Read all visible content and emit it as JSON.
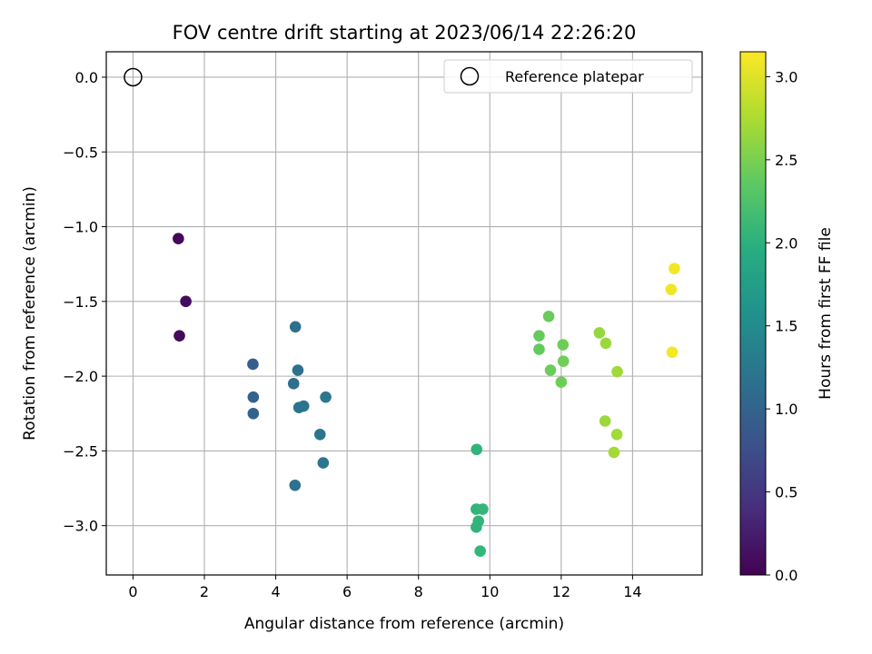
{
  "chart_data": {
    "type": "scatter",
    "title": "FOV centre drift starting at 2023/06/14 22:26:20",
    "xlabel": "Angular distance from reference (arcmin)",
    "ylabel": "Rotation from reference (arcmin)",
    "xlim": [
      -0.75,
      15.95
    ],
    "ylim": [
      -3.33,
      0.17
    ],
    "xticks": [
      0,
      2,
      4,
      6,
      8,
      10,
      12,
      14
    ],
    "yticks": [
      0.0,
      -0.5,
      -1.0,
      -1.5,
      -2.0,
      -2.5,
      -3.0
    ],
    "xtick_labels": [
      "0",
      "2",
      "4",
      "6",
      "8",
      "10",
      "12",
      "14"
    ],
    "ytick_labels": [
      "0.0",
      "−0.5",
      "−1.0",
      "−1.5",
      "−2.0",
      "−2.5",
      "−3.0"
    ],
    "grid": true,
    "legend": {
      "placement": "top-right",
      "label": "Reference platepar"
    },
    "reference_point": {
      "x": 0,
      "y": 0
    },
    "colorbar": {
      "label": "Hours from first FF file",
      "range": [
        0.0,
        3.15
      ],
      "ticks": [
        0.0,
        0.5,
        1.0,
        1.5,
        2.0,
        2.5,
        3.0
      ],
      "tick_labels": [
        "0.0",
        "0.5",
        "1.0",
        "1.5",
        "2.0",
        "2.5",
        "3.0"
      ],
      "colormap": "viridis"
    },
    "points": [
      {
        "x": 1.27,
        "y": -1.08,
        "c": 0.05
      },
      {
        "x": 1.48,
        "y": -1.5,
        "c": 0.1
      },
      {
        "x": 1.3,
        "y": -1.73,
        "c": 0.07
      },
      {
        "x": 3.36,
        "y": -1.92,
        "c": 0.95
      },
      {
        "x": 3.37,
        "y": -2.14,
        "c": 0.97
      },
      {
        "x": 3.37,
        "y": -2.25,
        "c": 0.99
      },
      {
        "x": 4.55,
        "y": -1.67,
        "c": 1.15
      },
      {
        "x": 4.62,
        "y": -1.96,
        "c": 1.17
      },
      {
        "x": 4.5,
        "y": -2.05,
        "c": 1.13
      },
      {
        "x": 4.65,
        "y": -2.21,
        "c": 1.19
      },
      {
        "x": 4.78,
        "y": -2.2,
        "c": 1.21
      },
      {
        "x": 5.4,
        "y": -2.14,
        "c": 1.25
      },
      {
        "x": 5.24,
        "y": -2.39,
        "c": 1.23
      },
      {
        "x": 5.33,
        "y": -2.58,
        "c": 1.24
      },
      {
        "x": 4.54,
        "y": -2.73,
        "c": 1.16
      },
      {
        "x": 9.63,
        "y": -2.49,
        "c": 2.05
      },
      {
        "x": 9.62,
        "y": -2.89,
        "c": 2.07
      },
      {
        "x": 9.8,
        "y": -2.89,
        "c": 2.08
      },
      {
        "x": 9.68,
        "y": -2.97,
        "c": 2.06
      },
      {
        "x": 9.62,
        "y": -3.01,
        "c": 2.05
      },
      {
        "x": 9.73,
        "y": -3.17,
        "c": 2.09
      },
      {
        "x": 11.65,
        "y": -1.6,
        "c": 2.42
      },
      {
        "x": 11.38,
        "y": -1.73,
        "c": 2.4
      },
      {
        "x": 11.38,
        "y": -1.82,
        "c": 2.4
      },
      {
        "x": 12.05,
        "y": -1.79,
        "c": 2.45
      },
      {
        "x": 12.06,
        "y": -1.9,
        "c": 2.46
      },
      {
        "x": 11.7,
        "y": -1.96,
        "c": 2.43
      },
      {
        "x": 12.0,
        "y": -2.04,
        "c": 2.45
      },
      {
        "x": 13.07,
        "y": -1.71,
        "c": 2.65
      },
      {
        "x": 13.25,
        "y": -1.78,
        "c": 2.67
      },
      {
        "x": 13.57,
        "y": -1.97,
        "c": 2.7
      },
      {
        "x": 13.23,
        "y": -2.3,
        "c": 2.68
      },
      {
        "x": 13.56,
        "y": -2.39,
        "c": 2.71
      },
      {
        "x": 13.48,
        "y": -2.51,
        "c": 2.72
      },
      {
        "x": 15.17,
        "y": -1.28,
        "c": 3.1
      },
      {
        "x": 15.08,
        "y": -1.42,
        "c": 3.09
      },
      {
        "x": 15.11,
        "y": -1.84,
        "c": 3.11
      }
    ]
  }
}
